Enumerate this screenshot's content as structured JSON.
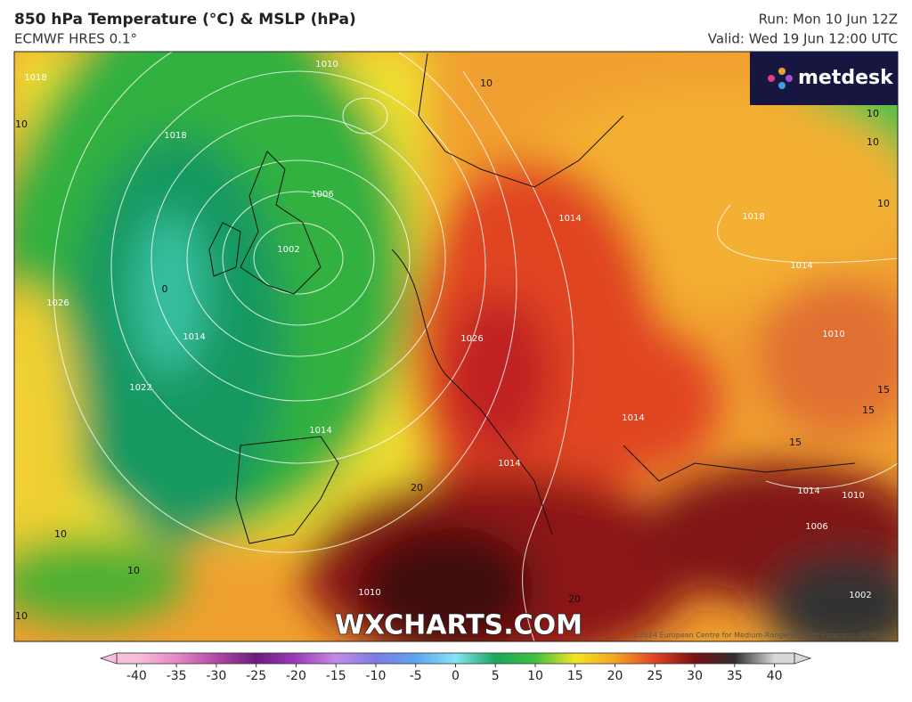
{
  "header": {
    "title": "850 hPa Temperature (°C) & MSLP (hPa)",
    "subtitle": "ECMWF HRES 0.1°",
    "run": "Run: Mon 10 Jun 12Z",
    "valid": "Valid: Wed 19 Jun 12:00 UTC"
  },
  "logo": "metdesk",
  "watermark": "WXCHARTS.COM",
  "copyright": "©2024 European Centre for Medium-Range Weather Forecasts (ECMWF)",
  "isobar_labels": [
    "1018",
    "1010",
    "1018",
    "1006",
    "1002",
    "1026",
    "1014",
    "1022",
    "1014",
    "1014",
    "1018",
    "1014",
    "1010",
    "1026",
    "1014",
    "1014",
    "1014",
    "1010",
    "1006",
    "1002",
    "1010"
  ],
  "isotherm_labels": [
    "10",
    "10",
    "10",
    "10",
    "10",
    "10",
    "10",
    "10",
    "0",
    "20",
    "20",
    "15",
    "15",
    "15"
  ],
  "colorbar": {
    "lim": [
      -42.5,
      42.5
    ],
    "ticks": [
      -40,
      -35,
      -30,
      -25,
      -20,
      -15,
      -10,
      -5,
      0,
      5,
      10,
      15,
      20,
      25,
      30,
      35,
      40
    ],
    "colors": [
      "#f6c0dc",
      "#e488c6",
      "#b448a4",
      "#6c1c7c",
      "#9c3cbc",
      "#c48ce4",
      "#7c7ce4",
      "#5ca4f0",
      "#88e4f4",
      "#18a85c",
      "#40c040",
      "#f4e424",
      "#f4a424",
      "#e04424",
      "#7c1010",
      "#303030",
      "#d8d8d8"
    ]
  }
}
